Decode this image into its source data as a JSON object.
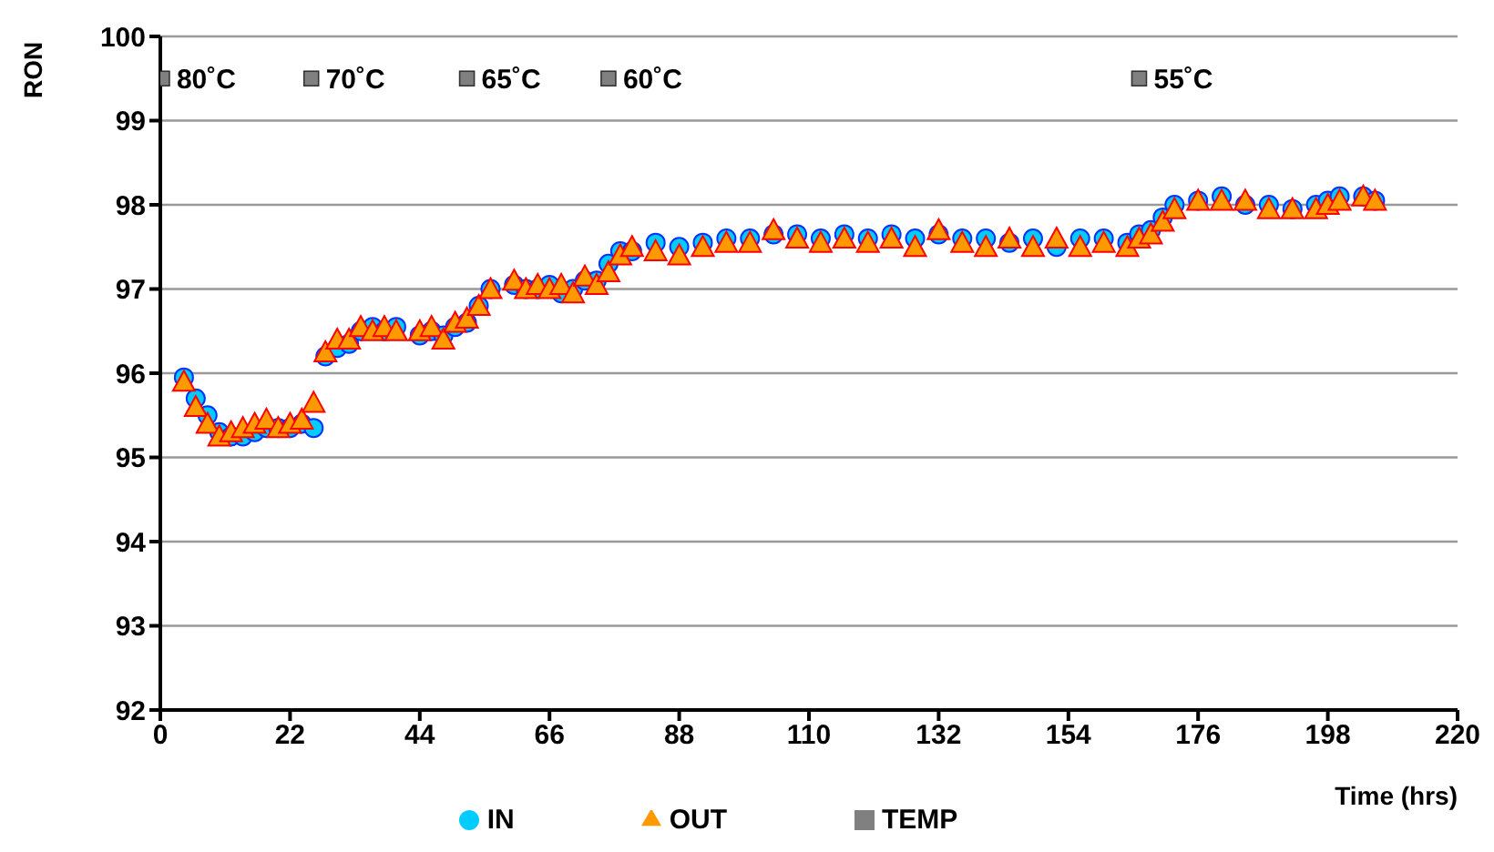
{
  "chart_data": {
    "type": "scatter",
    "xlabel": "Time (hrs)",
    "ylabel": "RON",
    "xlim": [
      0,
      220
    ],
    "xticks": [
      0,
      22,
      44,
      66,
      88,
      110,
      132,
      154,
      176,
      198,
      220
    ],
    "ylim": [
      92,
      100
    ],
    "yticks": [
      92,
      93,
      94,
      95,
      96,
      97,
      98,
      99,
      100
    ],
    "grid": "y",
    "legend": "bottom",
    "x": [
      4,
      6,
      8,
      10,
      12,
      14,
      16,
      18,
      20,
      22,
      24,
      26,
      28,
      30,
      32,
      34,
      36,
      38,
      40,
      44,
      46,
      48,
      50,
      52,
      54,
      56,
      60,
      62,
      64,
      66,
      68,
      70,
      72,
      74,
      76,
      78,
      80,
      84,
      88,
      92,
      96,
      100,
      104,
      108,
      112,
      116,
      120,
      124,
      128,
      132,
      136,
      140,
      144,
      148,
      152,
      156,
      160,
      164,
      166,
      168,
      170,
      172,
      176,
      180,
      184,
      188,
      192,
      196,
      198,
      200,
      204,
      206
    ],
    "series": [
      {
        "name": "IN",
        "color": "#00ccff",
        "marker": "circle",
        "values": [
          95.95,
          95.7,
          95.5,
          95.3,
          95.25,
          95.25,
          95.3,
          95.35,
          95.35,
          95.35,
          95.4,
          95.35,
          96.2,
          96.3,
          96.35,
          96.5,
          96.55,
          96.5,
          96.55,
          96.45,
          96.5,
          96.45,
          96.55,
          96.6,
          96.8,
          97.0,
          97.05,
          97.0,
          97.0,
          97.05,
          96.95,
          97.0,
          97.1,
          97.1,
          97.3,
          97.45,
          97.45,
          97.55,
          97.5,
          97.55,
          97.6,
          97.6,
          97.65,
          97.65,
          97.6,
          97.65,
          97.6,
          97.65,
          97.6,
          97.65,
          97.6,
          97.6,
          97.55,
          97.6,
          97.5,
          97.6,
          97.6,
          97.55,
          97.65,
          97.7,
          97.85,
          98.0,
          98.05,
          98.1,
          98.0,
          98.0,
          97.95,
          98.0,
          98.05,
          98.1,
          98.1,
          98.05
        ]
      },
      {
        "name": "OUT",
        "color": "#ff9900",
        "marker": "triangle",
        "values": [
          95.9,
          95.6,
          95.4,
          95.25,
          95.3,
          95.35,
          95.4,
          95.45,
          95.35,
          95.4,
          95.45,
          95.65,
          96.25,
          96.4,
          96.4,
          96.55,
          96.5,
          96.55,
          96.5,
          96.5,
          96.55,
          96.4,
          96.6,
          96.65,
          96.8,
          97.0,
          97.1,
          97.0,
          97.05,
          97.0,
          97.05,
          96.95,
          97.15,
          97.05,
          97.2,
          97.4,
          97.5,
          97.45,
          97.4,
          97.5,
          97.55,
          97.55,
          97.7,
          97.6,
          97.55,
          97.6,
          97.55,
          97.6,
          97.5,
          97.7,
          97.55,
          97.5,
          97.6,
          97.5,
          97.6,
          97.5,
          97.55,
          97.5,
          97.6,
          97.65,
          97.8,
          97.95,
          98.05,
          98.05,
          98.05,
          97.95,
          97.95,
          97.95,
          98.0,
          98.05,
          98.1,
          98.05
        ]
      },
      {
        "name": "TEMP",
        "color": "#808080",
        "marker": "square",
        "x": [
          0.3,
          25.6,
          52,
          76,
          166
        ],
        "values": [
          99.5,
          99.5,
          99.5,
          99.5,
          99.5
        ]
      }
    ],
    "annotations": [
      {
        "text": "80˚C",
        "x": 0.3,
        "y": 99.5
      },
      {
        "text": "70˚C",
        "x": 25.6,
        "y": 99.5
      },
      {
        "text": "65˚C",
        "x": 52,
        "y": 99.5
      },
      {
        "text": "60˚C",
        "x": 76,
        "y": 99.5
      },
      {
        "text": "55˚C",
        "x": 166,
        "y": 99.5
      }
    ]
  }
}
